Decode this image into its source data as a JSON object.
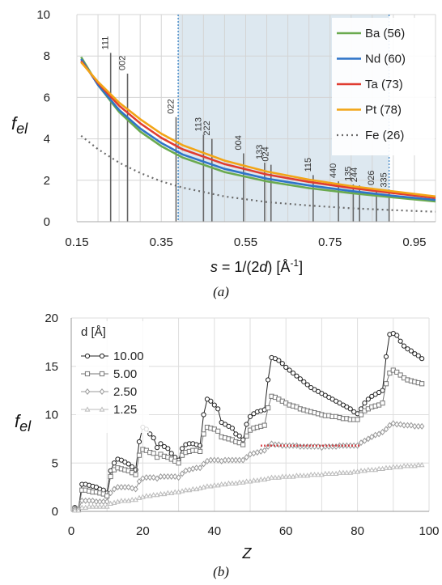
{
  "chart_data": [
    {
      "type": "line",
      "caption": "(a)",
      "xlabel": {
        "sym": "s",
        "eq": " = 1/(2",
        "sym2": "d",
        "rest": ") [Å",
        "sup": "-1",
        "end": "]"
      },
      "ylabel": {
        "main": "f",
        "sub": "el"
      },
      "xlim": [
        0.15,
        1.0
      ],
      "ylim": [
        0,
        10
      ],
      "xticks": [
        "0.15",
        "0.35",
        "0.55",
        "0.75",
        "0.95"
      ],
      "xtick_values": [
        0.15,
        0.35,
        0.55,
        0.75,
        0.95
      ],
      "yticks": [
        "0",
        "2",
        "4",
        "6",
        "8",
        "10"
      ],
      "ytick_values": [
        0,
        2,
        4,
        6,
        8,
        10
      ],
      "grid": true,
      "shaded_region": [
        0.39,
        0.89
      ],
      "legend": "top-right",
      "series": [
        {
          "name": "Ba (56)",
          "color": "#6aaa4f",
          "x": [
            0.16,
            0.2,
            0.25,
            0.3,
            0.35,
            0.4,
            0.5,
            0.6,
            0.7,
            0.8,
            0.9,
            1.0
          ],
          "y": [
            7.95,
            6.6,
            5.3,
            4.35,
            3.65,
            3.1,
            2.4,
            1.95,
            1.62,
            1.38,
            1.17,
            0.98
          ]
        },
        {
          "name": "Nd (60)",
          "color": "#2f74c8",
          "x": [
            0.16,
            0.2,
            0.25,
            0.3,
            0.35,
            0.4,
            0.5,
            0.6,
            0.7,
            0.8,
            0.9,
            1.0
          ],
          "y": [
            7.85,
            6.6,
            5.4,
            4.5,
            3.8,
            3.25,
            2.55,
            2.08,
            1.75,
            1.48,
            1.25,
            1.05
          ]
        },
        {
          "name": "Ta (73)",
          "color": "#e03c31",
          "x": [
            0.16,
            0.2,
            0.25,
            0.3,
            0.35,
            0.4,
            0.5,
            0.6,
            0.7,
            0.8,
            0.9,
            1.0
          ],
          "y": [
            7.75,
            6.7,
            5.6,
            4.75,
            4.05,
            3.5,
            2.78,
            2.28,
            1.92,
            1.63,
            1.38,
            1.15
          ]
        },
        {
          "name": "Pt (78)",
          "color": "#f2a516",
          "x": [
            0.16,
            0.2,
            0.25,
            0.3,
            0.35,
            0.4,
            0.5,
            0.6,
            0.7,
            0.8,
            0.9,
            1.0
          ],
          "y": [
            7.7,
            6.75,
            5.75,
            4.95,
            4.25,
            3.7,
            2.95,
            2.42,
            2.03,
            1.72,
            1.46,
            1.22
          ]
        },
        {
          "name": "Fe (26)",
          "color": "#6b6b6b",
          "dash": true,
          "x": [
            0.16,
            0.2,
            0.25,
            0.3,
            0.35,
            0.4,
            0.5,
            0.6,
            0.7,
            0.8,
            0.9,
            1.0
          ],
          "y": [
            4.15,
            3.5,
            2.85,
            2.35,
            1.95,
            1.65,
            1.22,
            0.95,
            0.78,
            0.65,
            0.56,
            0.48
          ]
        }
      ],
      "reflections": [
        {
          "label": "111",
          "s": 0.23,
          "f": 8.15
        },
        {
          "label": "002",
          "s": 0.27,
          "f": 7.15
        },
        {
          "label": "022",
          "s": 0.385,
          "f": 5.05
        },
        {
          "label": "113",
          "s": 0.45,
          "f": 4.2
        },
        {
          "label": "222",
          "s": 0.47,
          "f": 4.0
        },
        {
          "label": "004",
          "s": 0.545,
          "f": 3.3
        },
        {
          "label": "133",
          "s": 0.595,
          "f": 2.85
        },
        {
          "label": "024",
          "s": 0.61,
          "f": 2.75
        },
        {
          "label": "115",
          "s": 0.71,
          "f": 2.25
        },
        {
          "label": "440",
          "s": 0.77,
          "f": 1.95
        },
        {
          "label": "135",
          "s": 0.805,
          "f": 1.8
        },
        {
          "label": "244",
          "s": 0.82,
          "f": 1.75
        },
        {
          "label": "026",
          "s": 0.86,
          "f": 1.6
        },
        {
          "label": "335",
          "s": 0.89,
          "f": 1.5
        }
      ]
    },
    {
      "type": "line",
      "caption": "(b)",
      "xlabel": "Z",
      "ylabel": {
        "main": "f",
        "sub": "el"
      },
      "xlim": [
        0,
        100
      ],
      "ylim": [
        0,
        20
      ],
      "xticks": [
        "0",
        "20",
        "40",
        "60",
        "80",
        "100"
      ],
      "xtick_values": [
        0,
        20,
        40,
        60,
        80,
        100
      ],
      "yticks": [
        "0",
        "5",
        "10",
        "15",
        "20"
      ],
      "ytick_values": [
        0,
        5,
        10,
        15,
        20
      ],
      "grid": true,
      "legend_title": "d  [Å]",
      "legend": "top-left",
      "series": [
        {
          "name": "10.00",
          "color": "#222222",
          "marker": "circle",
          "x": [
            1,
            2,
            3,
            4,
            5,
            6,
            7,
            8,
            9,
            10,
            11,
            12,
            13,
            14,
            15,
            16,
            17,
            18,
            19,
            20,
            21,
            22,
            23,
            24,
            25,
            26,
            27,
            28,
            29,
            30,
            31,
            32,
            33,
            34,
            35,
            36,
            37,
            38,
            39,
            40,
            41,
            42,
            43,
            44,
            45,
            46,
            47,
            48,
            49,
            50,
            51,
            52,
            53,
            54,
            55,
            56,
            57,
            58,
            59,
            60,
            61,
            62,
            63,
            64,
            65,
            66,
            67,
            68,
            69,
            70,
            71,
            72,
            73,
            74,
            75,
            76,
            77,
            78,
            79,
            80,
            81,
            82,
            83,
            84,
            85,
            86,
            87,
            88,
            89,
            90,
            91,
            92,
            93,
            94,
            95,
            96,
            97,
            98
          ],
          "y": [
            0.4,
            0.2,
            2.8,
            2.8,
            2.7,
            2.6,
            2.5,
            2.3,
            2.2,
            1.9,
            4.2,
            5.0,
            5.4,
            5.3,
            5.1,
            4.9,
            4.6,
            4.3,
            7.2,
            8.7,
            8.5,
            8.0,
            7.6,
            6.6,
            7.0,
            6.7,
            6.5,
            6.0,
            5.6,
            5.3,
            6.5,
            6.9,
            7.0,
            7.0,
            6.9,
            6.8,
            10.0,
            11.6,
            11.4,
            11.0,
            10.6,
            9.2,
            9.0,
            8.8,
            8.6,
            8.0,
            7.8,
            7.4,
            9.0,
            9.8,
            10.1,
            10.3,
            10.4,
            10.5,
            13.6,
            15.9,
            15.8,
            15.6,
            15.3,
            14.9,
            14.6,
            14.3,
            14.0,
            13.7,
            13.4,
            13.1,
            12.8,
            12.6,
            12.4,
            12.2,
            12.0,
            11.8,
            11.6,
            11.4,
            11.2,
            11.0,
            10.8,
            10.6,
            10.3,
            10.1,
            10.6,
            11.2,
            11.6,
            11.9,
            12.1,
            12.3,
            12.5,
            16.0,
            18.3,
            18.4,
            18.2,
            17.6,
            17.1,
            16.8,
            16.6,
            16.3,
            16.1,
            15.8
          ]
        },
        {
          "name": "5.00",
          "color": "#777777",
          "marker": "square",
          "x": [
            1,
            2,
            3,
            4,
            5,
            6,
            7,
            8,
            9,
            10,
            11,
            12,
            13,
            14,
            15,
            16,
            17,
            18,
            19,
            20,
            21,
            22,
            23,
            24,
            25,
            26,
            27,
            28,
            29,
            30,
            31,
            32,
            33,
            34,
            35,
            36,
            37,
            38,
            39,
            40,
            41,
            42,
            43,
            44,
            45,
            46,
            47,
            48,
            49,
            50,
            51,
            52,
            53,
            54,
            55,
            56,
            57,
            58,
            59,
            60,
            61,
            62,
            63,
            64,
            65,
            66,
            67,
            68,
            69,
            70,
            71,
            72,
            73,
            74,
            75,
            76,
            77,
            78,
            79,
            80,
            81,
            82,
            83,
            84,
            85,
            86,
            87,
            88,
            89,
            90,
            91,
            92,
            93,
            94,
            95,
            96,
            97,
            98
          ],
          "y": [
            0.3,
            0.2,
            2.2,
            2.2,
            2.1,
            2.0,
            2.0,
            1.9,
            1.8,
            1.6,
            3.6,
            4.3,
            4.5,
            4.4,
            4.3,
            4.2,
            4.0,
            3.8,
            5.8,
            6.4,
            6.3,
            6.1,
            6.0,
            5.6,
            5.9,
            5.7,
            5.6,
            5.4,
            5.2,
            5.0,
            5.8,
            6.1,
            6.2,
            6.3,
            6.3,
            6.2,
            8.0,
            8.7,
            8.6,
            8.5,
            8.3,
            7.7,
            7.6,
            7.5,
            7.4,
            7.2,
            7.1,
            6.9,
            7.8,
            8.4,
            8.6,
            8.7,
            8.8,
            8.9,
            10.7,
            11.9,
            11.8,
            11.6,
            11.4,
            11.2,
            11.0,
            10.9,
            10.8,
            10.6,
            10.5,
            10.4,
            10.3,
            10.2,
            10.1,
            10.0,
            9.9,
            9.9,
            9.8,
            9.8,
            9.7,
            9.6,
            9.6,
            9.5,
            9.5,
            9.5,
            10.0,
            10.4,
            10.6,
            10.8,
            10.9,
            11.0,
            11.2,
            13.2,
            14.3,
            14.6,
            14.4,
            14.1,
            13.8,
            13.6,
            13.5,
            13.4,
            13.3,
            13.2
          ]
        },
        {
          "name": "2.50",
          "color": "#999999",
          "marker": "diamond",
          "x": [
            1,
            2,
            3,
            4,
            5,
            6,
            7,
            8,
            9,
            10,
            11,
            12,
            13,
            14,
            15,
            16,
            17,
            18,
            19,
            20,
            21,
            22,
            23,
            24,
            25,
            26,
            27,
            28,
            29,
            30,
            31,
            32,
            33,
            34,
            35,
            36,
            37,
            38,
            39,
            40,
            41,
            42,
            43,
            44,
            45,
            46,
            47,
            48,
            49,
            50,
            51,
            52,
            53,
            54,
            55,
            56,
            57,
            58,
            59,
            60,
            61,
            62,
            63,
            64,
            65,
            66,
            67,
            68,
            69,
            70,
            71,
            72,
            73,
            74,
            75,
            76,
            77,
            78,
            79,
            80,
            81,
            82,
            83,
            84,
            85,
            86,
            87,
            88,
            89,
            90,
            91,
            92,
            93,
            94,
            95,
            96,
            97,
            98
          ],
          "y": [
            0.2,
            0.2,
            1.1,
            1.1,
            1.1,
            1.1,
            1.0,
            1.0,
            1.0,
            1.0,
            1.9,
            2.3,
            2.5,
            2.5,
            2.5,
            2.5,
            2.4,
            2.3,
            3.1,
            3.4,
            3.5,
            3.5,
            3.5,
            3.4,
            3.6,
            3.6,
            3.6,
            3.6,
            3.6,
            3.5,
            3.9,
            4.2,
            4.3,
            4.4,
            4.5,
            4.5,
            4.9,
            5.2,
            5.3,
            5.3,
            5.3,
            5.2,
            5.3,
            5.3,
            5.3,
            5.3,
            5.3,
            5.3,
            5.6,
            5.9,
            6.0,
            6.1,
            6.2,
            6.3,
            6.7,
            7.0,
            6.9,
            6.9,
            6.8,
            6.8,
            6.8,
            6.8,
            6.8,
            6.7,
            6.7,
            6.7,
            6.7,
            6.7,
            6.7,
            6.6,
            6.7,
            6.7,
            6.7,
            6.7,
            6.8,
            6.8,
            6.8,
            6.8,
            6.8,
            6.8,
            7.1,
            7.3,
            7.5,
            7.7,
            7.9,
            8.0,
            8.2,
            8.5,
            8.9,
            9.1,
            9.0,
            9.0,
            8.9,
            8.9,
            8.9,
            8.8,
            8.8,
            8.8
          ]
        },
        {
          "name": "1.25",
          "color": "#bbbbbb",
          "marker": "triangle",
          "x": [
            1,
            2,
            3,
            4,
            5,
            6,
            7,
            8,
            9,
            10,
            11,
            12,
            13,
            14,
            15,
            16,
            17,
            18,
            19,
            20,
            21,
            22,
            23,
            24,
            25,
            26,
            27,
            28,
            29,
            30,
            31,
            32,
            33,
            34,
            35,
            36,
            37,
            38,
            39,
            40,
            41,
            42,
            43,
            44,
            45,
            46,
            47,
            48,
            49,
            50,
            51,
            52,
            53,
            54,
            55,
            56,
            57,
            58,
            59,
            60,
            61,
            62,
            63,
            64,
            65,
            66,
            67,
            68,
            69,
            70,
            71,
            72,
            73,
            74,
            75,
            76,
            77,
            78,
            79,
            80,
            81,
            82,
            83,
            84,
            85,
            86,
            87,
            88,
            89,
            90,
            91,
            92,
            93,
            94,
            95,
            96,
            97,
            98
          ],
          "y": [
            0.1,
            0.1,
            0.4,
            0.4,
            0.5,
            0.5,
            0.5,
            0.5,
            0.5,
            0.5,
            0.8,
            0.9,
            1.0,
            1.1,
            1.1,
            1.1,
            1.2,
            1.2,
            1.4,
            1.5,
            1.6,
            1.6,
            1.7,
            1.7,
            1.8,
            1.8,
            1.9,
            1.9,
            2.0,
            2.0,
            2.1,
            2.2,
            2.2,
            2.3,
            2.3,
            2.4,
            2.5,
            2.6,
            2.6,
            2.7,
            2.7,
            2.8,
            2.8,
            2.9,
            2.9,
            2.9,
            3.0,
            3.0,
            3.1,
            3.1,
            3.2,
            3.2,
            3.3,
            3.3,
            3.4,
            3.5,
            3.5,
            3.5,
            3.6,
            3.6,
            3.6,
            3.6,
            3.7,
            3.7,
            3.7,
            3.7,
            3.8,
            3.8,
            3.8,
            3.8,
            3.9,
            3.9,
            3.9,
            3.9,
            4.0,
            4.0,
            4.0,
            4.0,
            4.1,
            4.1,
            4.2,
            4.2,
            4.3,
            4.3,
            4.3,
            4.4,
            4.4,
            4.5,
            4.5,
            4.6,
            4.6,
            4.6,
            4.7,
            4.7,
            4.7,
            4.7,
            4.8,
            4.8
          ]
        },
        {
          "name": "",
          "color": "#d0191f",
          "dotted": true,
          "x": [
            53,
            81
          ],
          "y": [
            6.8,
            6.8
          ]
        }
      ]
    }
  ]
}
